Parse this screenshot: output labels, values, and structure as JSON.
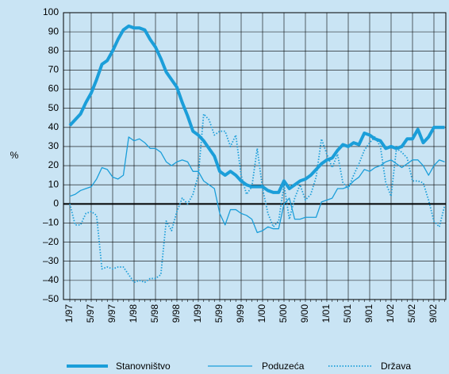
{
  "chart_data": {
    "type": "line",
    "y_label": "%",
    "categories": [
      "1/97",
      null,
      null,
      null,
      "5/97",
      null,
      null,
      null,
      "9/97",
      null,
      null,
      null,
      "1/98",
      null,
      null,
      null,
      "5/98",
      null,
      null,
      null,
      "9/98",
      null,
      null,
      null,
      "1/99",
      null,
      null,
      null,
      "5/99",
      null,
      null,
      null,
      "9/99",
      null,
      null,
      null,
      "1/00",
      null,
      null,
      null,
      "5/00",
      null,
      null,
      null,
      "9/00",
      null,
      null,
      null,
      "1/01",
      null,
      null,
      null,
      "5/01",
      null,
      null,
      null,
      "9/01",
      null,
      null,
      null,
      "1/02",
      null,
      null,
      null,
      "5/02",
      null,
      null,
      null,
      "9/02",
      null,
      null
    ],
    "series": [
      {
        "name": "Stanovništvo",
        "color": "#1b9ed9",
        "width": 4,
        "dash": "solid",
        "values": [
          41,
          44,
          47,
          53,
          58,
          65,
          73,
          75,
          80,
          86,
          91,
          93,
          92,
          92,
          91,
          86,
          82,
          76,
          69,
          65,
          61,
          53,
          46,
          38,
          36,
          33,
          29,
          25,
          17,
          15,
          17,
          15,
          12,
          10,
          9,
          9,
          9,
          7,
          6,
          6,
          12,
          8,
          10,
          12,
          13,
          15,
          18,
          21,
          23,
          24,
          28,
          31,
          30,
          32,
          31,
          37,
          36,
          34,
          33,
          29,
          30,
          29,
          30,
          34,
          34,
          39,
          32,
          35,
          40,
          40,
          40
        ]
      },
      {
        "name": "Poduzeća",
        "color": "#1b9ed9",
        "width": 1.3,
        "dash": "solid",
        "values": [
          4,
          5,
          7,
          8,
          9,
          13,
          19,
          18,
          14,
          13,
          15,
          35,
          33,
          34,
          32,
          29,
          29,
          27,
          22,
          20,
          22,
          23,
          22,
          17,
          17,
          12,
          10,
          8,
          -5,
          -11,
          -3,
          -3,
          -5,
          -6,
          -8,
          -15,
          -14,
          -12,
          -13,
          -13,
          0,
          3,
          -8,
          -8,
          -7,
          -7,
          -7,
          1,
          2,
          3,
          8,
          8,
          9,
          12,
          14,
          18,
          17,
          19,
          20,
          22,
          23,
          21,
          19,
          21,
          23,
          23,
          20,
          15,
          20,
          23,
          22
        ]
      },
      {
        "name": "Država",
        "color": "#1b9ed9",
        "width": 1.8,
        "dash": "dotted",
        "values": [
          0,
          -11,
          -11,
          -5,
          -4,
          -6,
          -34,
          -33,
          -34,
          -33,
          -33,
          -37,
          -41,
          -40,
          -41,
          -39,
          -39,
          -37,
          -9,
          -14,
          -4,
          3,
          0,
          5,
          15,
          47,
          44,
          36,
          38,
          38,
          30,
          36,
          15,
          5,
          9,
          29,
          8,
          -5,
          -12,
          -9,
          10,
          -8,
          3,
          10,
          2,
          5,
          14,
          34,
          26,
          19,
          26,
          11,
          8,
          15,
          21,
          28,
          32,
          35,
          30,
          11,
          4,
          29,
          27,
          24,
          12,
          12,
          11,
          2,
          -9,
          -12,
          -1
        ]
      }
    ],
    "ylim": [
      -50,
      100
    ],
    "yticks": [
      {
        "value": -50,
        "label": "–50"
      },
      {
        "value": -40,
        "label": "–40"
      },
      {
        "value": -30,
        "label": "–30"
      },
      {
        "value": -20,
        "label": "–20"
      },
      {
        "value": -10,
        "label": "–10"
      },
      0,
      10,
      20,
      30,
      40,
      50,
      60,
      70,
      80,
      90,
      100
    ],
    "grid": true,
    "legend": "bottom"
  }
}
